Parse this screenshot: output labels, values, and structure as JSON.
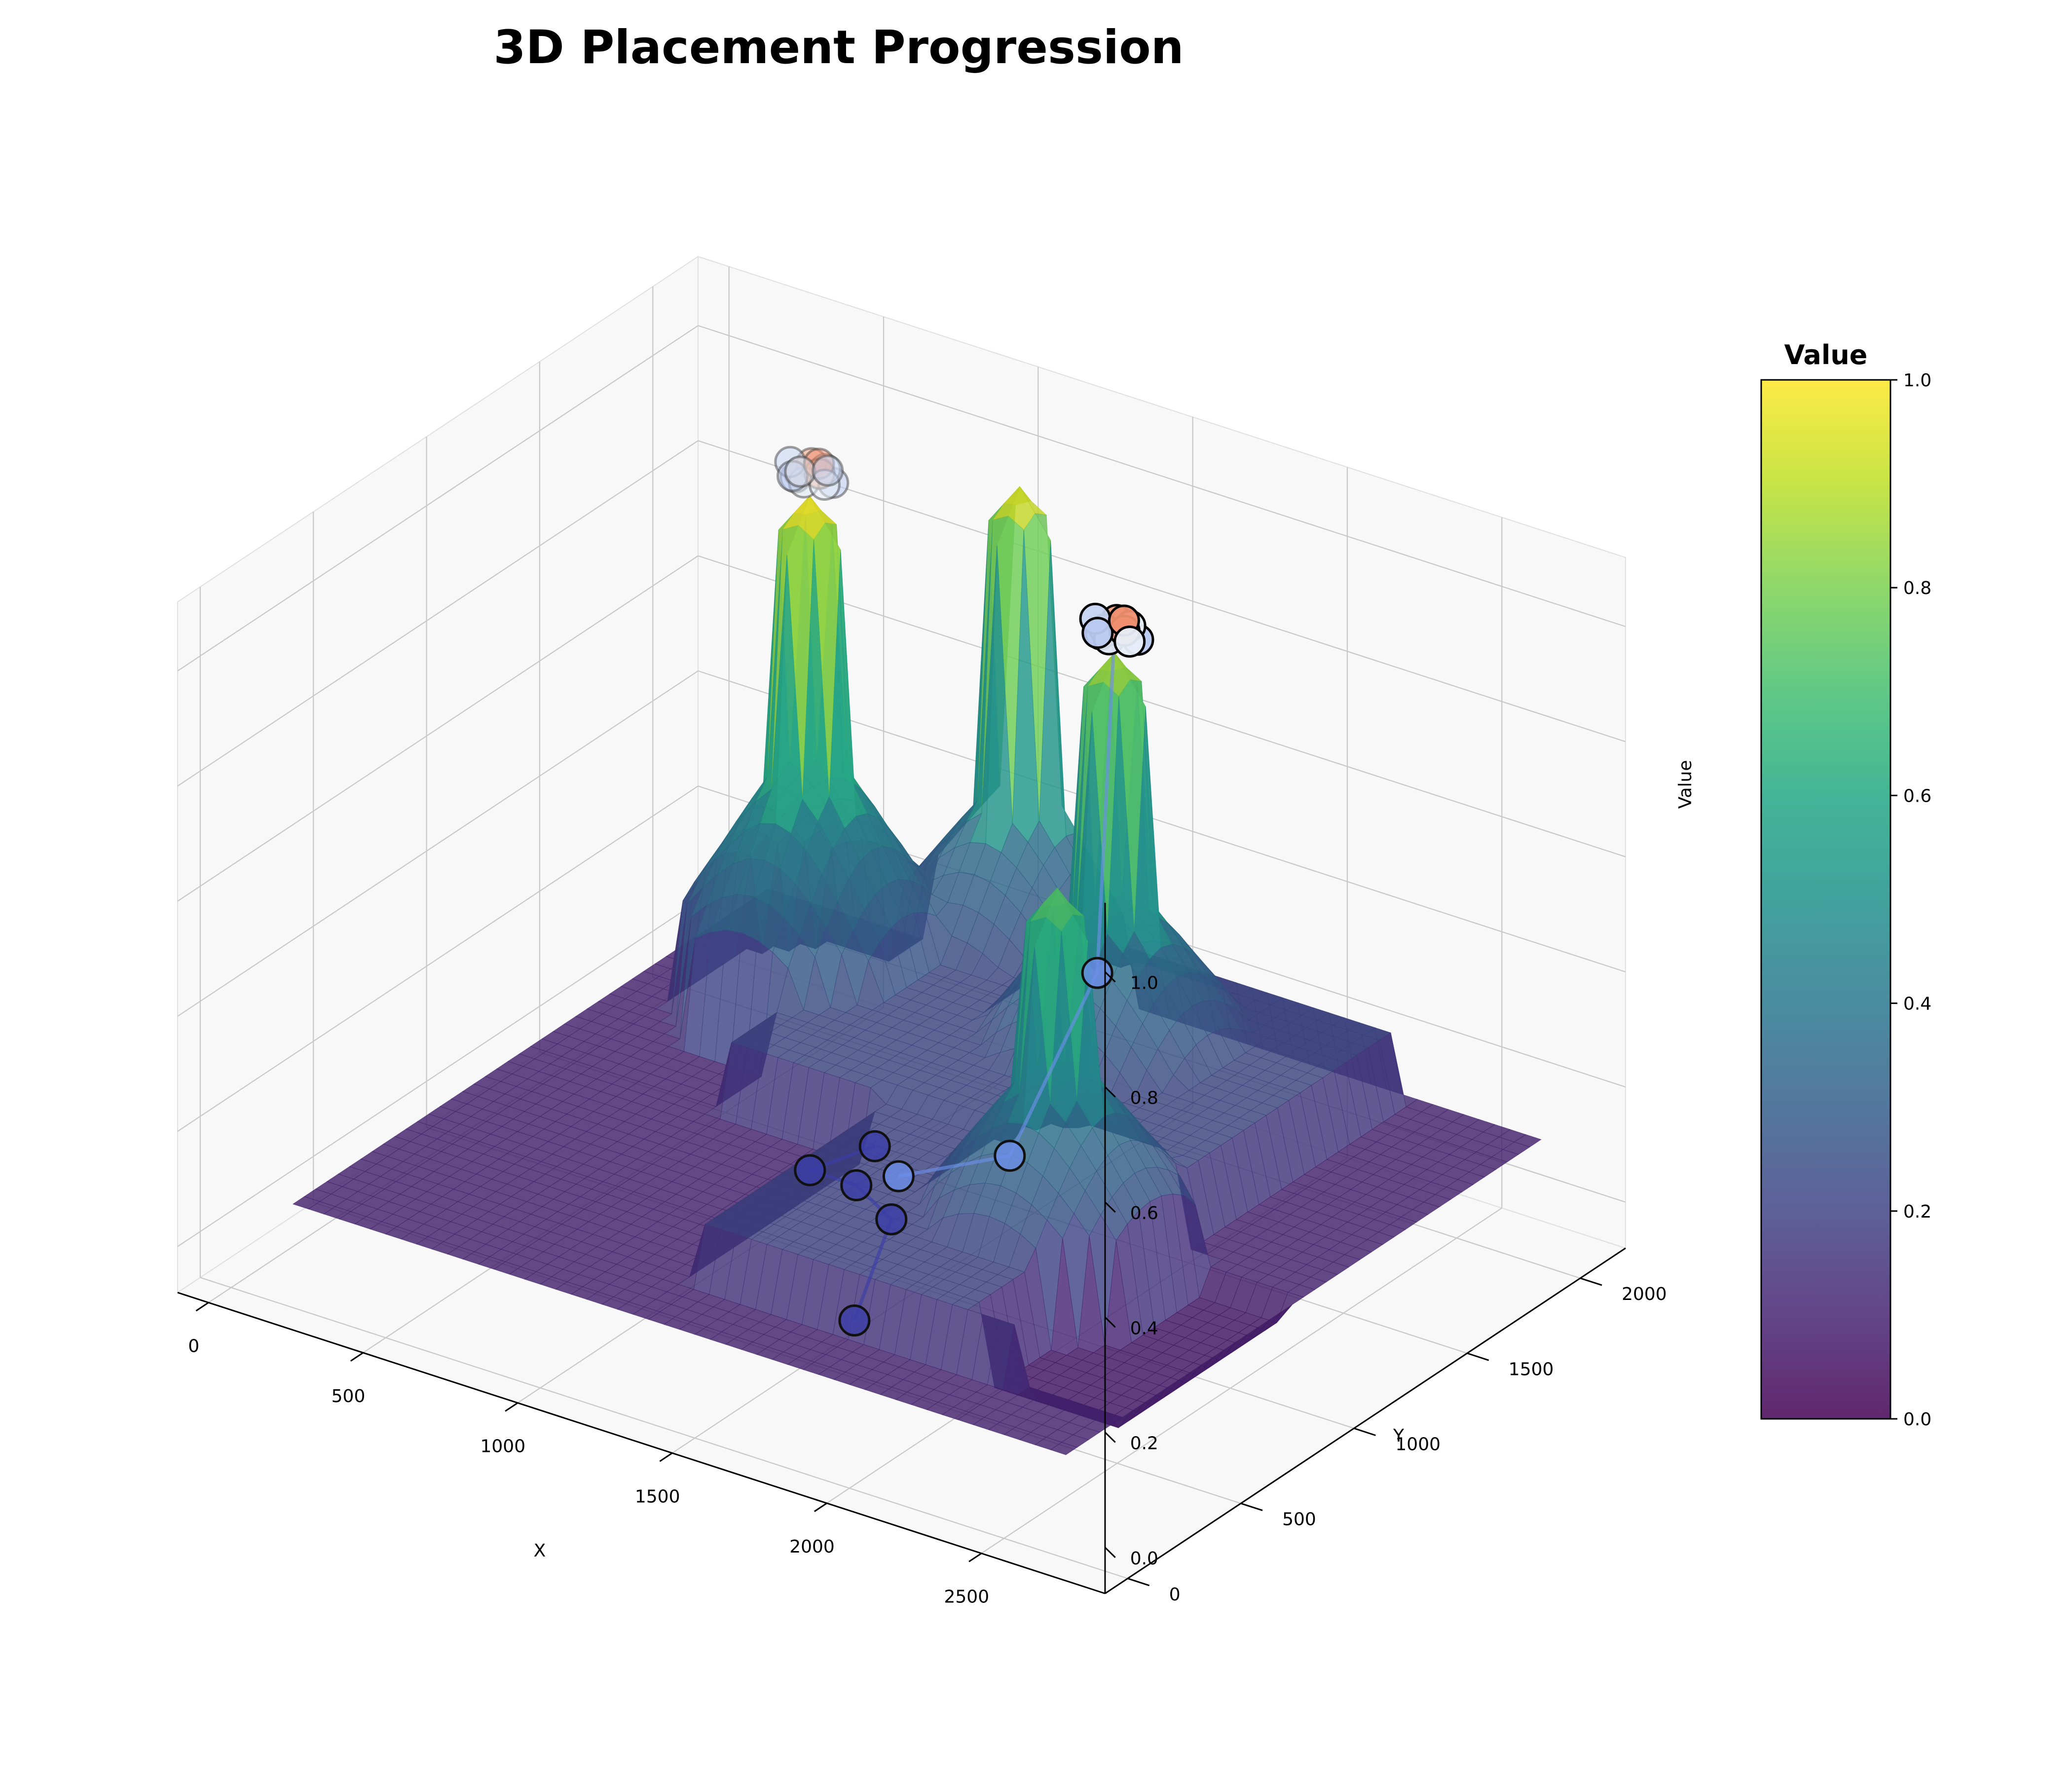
{
  "chart_data": {
    "type": "surface3d",
    "title": "3D Placement Progression",
    "xlabel": "X",
    "ylabel": "Y",
    "zlabel": "Value",
    "xlim": [
      -100,
      2900
    ],
    "ylim": [
      -100,
      2200
    ],
    "zlim": [
      -0.08,
      1.12
    ],
    "x_ticks": [
      0,
      500,
      1000,
      1500,
      2000,
      2500
    ],
    "y_ticks": [
      0,
      500,
      1000,
      1500,
      2000
    ],
    "z_ticks": [
      0.0,
      0.2,
      0.4,
      0.6,
      0.8,
      1.0
    ],
    "x_tick_labels": [
      "0",
      "500",
      "1000",
      "1500",
      "2000",
      "2500"
    ],
    "y_tick_labels": [
      "0",
      "500",
      "1000",
      "1500",
      "2000"
    ],
    "z_tick_labels": [
      "0.0",
      "0.2",
      "0.4",
      "0.6",
      "0.8",
      "1.0"
    ],
    "grid": true,
    "colormap": "viridis",
    "surface_alpha": 0.8,
    "surface_extent": {
      "x": [
        200,
        2700
      ],
      "y": [
        0,
        2100
      ]
    },
    "surface_base_value": 0.1,
    "regions": [
      {
        "x": [
          850,
          2250
        ],
        "y": [
          1050,
          2050
        ],
        "value": 0.22
      },
      {
        "x": [
          1350,
          2350
        ],
        "y": [
          250,
          1050
        ],
        "value": 0.2
      },
      {
        "x": [
          2250,
          2650
        ],
        "y": [
          300,
          1000
        ],
        "value": 0.06
      }
    ],
    "peaks": [
      {
        "x": 700,
        "y": 1600,
        "value": 1.0,
        "mound_value": 0.62
      },
      {
        "x": 1050,
        "y": 2050,
        "value": 0.96,
        "mound_value": 0.5
      },
      {
        "x": 1650,
        "y": 1650,
        "value": 0.88,
        "mound_value": 0.52
      },
      {
        "x": 2050,
        "y": 850,
        "value": 0.75,
        "mound_value": 0.5
      }
    ],
    "placement_trajectories": [
      {
        "color": "#3b3ea8",
        "points": [
          {
            "x": 1650,
            "y": 500,
            "z": 0.02
          },
          {
            "x": 1550,
            "y": 800,
            "z": 0.1
          },
          {
            "x": 1400,
            "y": 850,
            "z": 0.12
          },
          {
            "x": 1250,
            "y": 850,
            "z": 0.12
          },
          {
            "x": 1350,
            "y": 1000,
            "z": 0.14
          }
        ]
      },
      {
        "color": "#6b8fe8",
        "points": [
          {
            "x": 1500,
            "y": 900,
            "z": 0.14
          },
          {
            "x": 1750,
            "y": 1050,
            "z": 0.18
          },
          {
            "x": 1850,
            "y": 1300,
            "z": 0.45
          },
          {
            "x": 1650,
            "y": 1650,
            "z": 0.92
          }
        ]
      }
    ],
    "final_clusters": [
      {
        "x": 700,
        "y": 1600,
        "z": 1.04,
        "count": 14
      },
      {
        "x": 1650,
        "y": 1650,
        "z": 0.92,
        "count": 12
      }
    ],
    "colorbar": {
      "title": "Value",
      "min": 0.0,
      "max": 1.0,
      "ticks": [
        "0.0",
        "0.2",
        "0.4",
        "0.6",
        "0.8",
        "1.0"
      ]
    }
  }
}
